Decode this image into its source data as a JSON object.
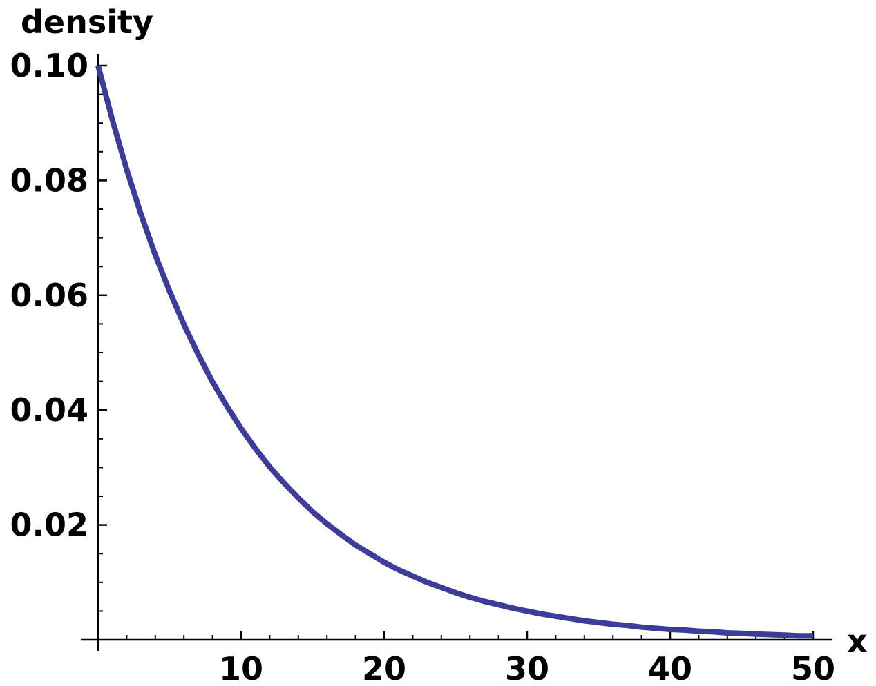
{
  "chart_data": {
    "type": "line",
    "xlabel": "x",
    "ylabel": "density",
    "xlim": [
      0,
      51
    ],
    "ylim": [
      0,
      0.1
    ],
    "x_ticks": [
      10,
      20,
      30,
      40,
      50
    ],
    "x_tick_labels": [
      "10",
      "20",
      "30",
      "40",
      "50"
    ],
    "y_ticks": [
      0.02,
      0.04,
      0.06,
      0.08,
      0.1
    ],
    "y_tick_labels": [
      "0.02",
      "0.04",
      "0.06",
      "0.08",
      "0.10"
    ],
    "x_minor_step": 2,
    "y_minor_step": 0.005,
    "grid": false,
    "series": [
      {
        "color": "#3d3d99",
        "x": [
          0,
          1,
          2,
          3,
          4,
          5,
          6,
          7,
          8,
          9,
          10,
          11,
          12,
          13,
          14,
          15,
          16,
          17,
          18,
          19,
          20,
          21,
          22,
          23,
          24,
          25,
          26,
          27,
          28,
          29,
          30,
          31,
          32,
          33,
          34,
          35,
          36,
          37,
          38,
          39,
          40,
          41,
          42,
          43,
          44,
          45,
          46,
          47,
          48,
          49,
          50
        ],
        "y": [
          0.1,
          0.0905,
          0.0819,
          0.0741,
          0.067,
          0.0607,
          0.0549,
          0.0497,
          0.0449,
          0.0407,
          0.0368,
          0.0333,
          0.0301,
          0.0273,
          0.0247,
          0.0223,
          0.0202,
          0.0183,
          0.0165,
          0.015,
          0.0135,
          0.0122,
          0.0111,
          0.01,
          0.0091,
          0.0082,
          0.0074,
          0.0067,
          0.0061,
          0.0055,
          0.005,
          0.0045,
          0.0041,
          0.0037,
          0.0033,
          0.003,
          0.0027,
          0.0025,
          0.0022,
          0.002,
          0.0018,
          0.0017,
          0.0015,
          0.0014,
          0.0012,
          0.0011,
          0.001,
          0.0009,
          0.0008,
          0.0007,
          0.0007
        ]
      }
    ]
  }
}
